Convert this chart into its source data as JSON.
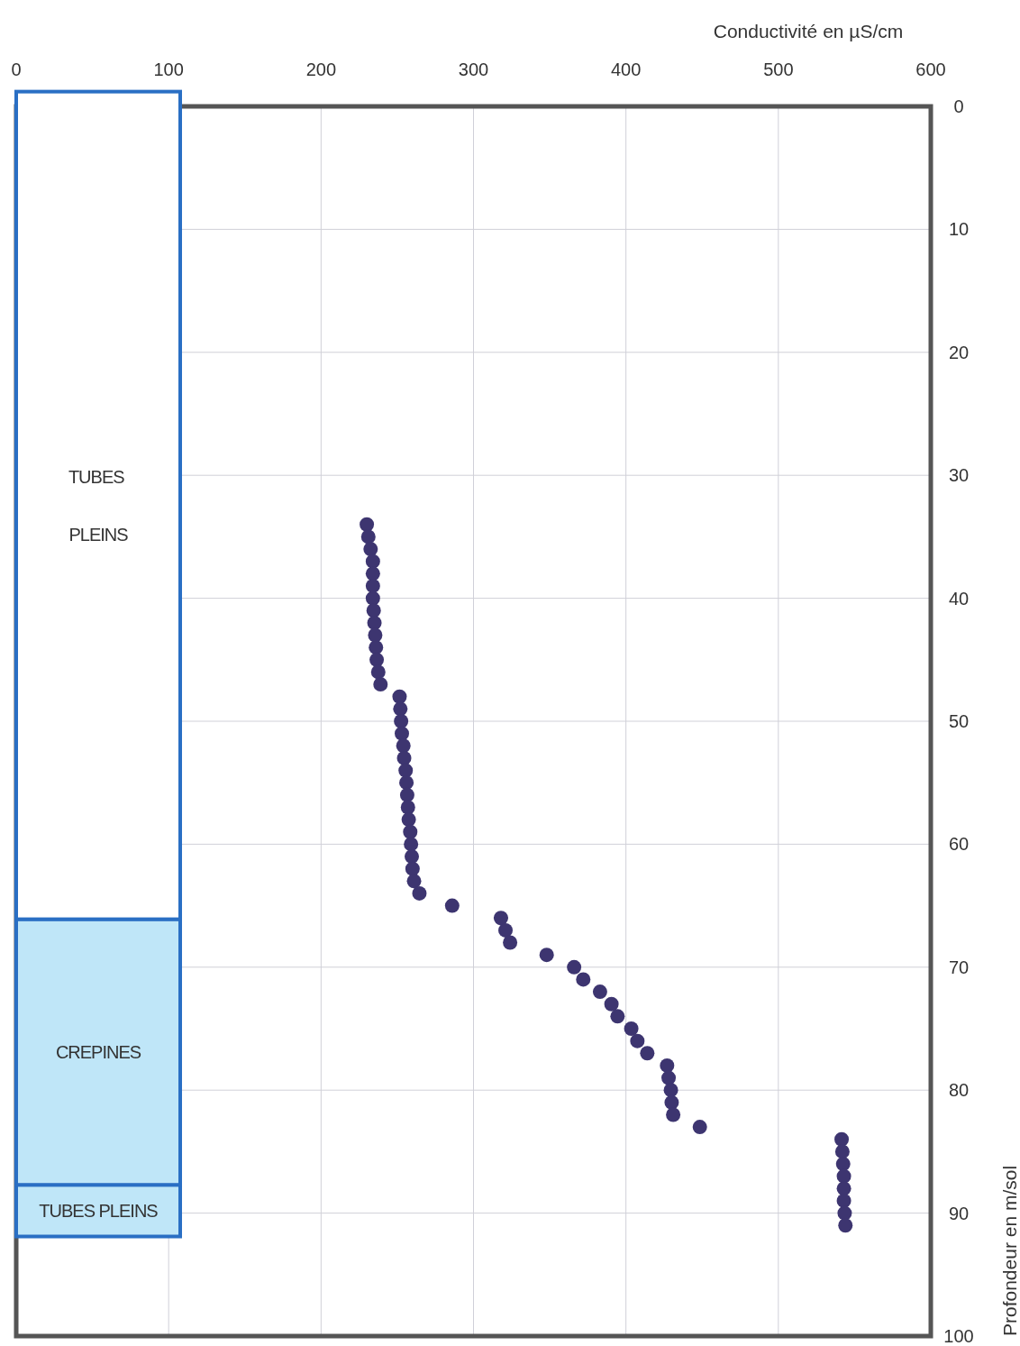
{
  "chart_data": {
    "type": "scatter",
    "xlabel": "Conductivité en µS/cm",
    "ylabel": "Profondeur en m/sol",
    "xlim": [
      0,
      600
    ],
    "xticks": [
      0,
      100,
      200,
      300,
      400,
      500,
      600
    ],
    "ylim": [
      100,
      0
    ],
    "yticks": [
      0,
      10,
      20,
      30,
      40,
      50,
      60,
      70,
      80,
      90,
      100
    ],
    "grid": true,
    "marker": "circle",
    "series": [
      {
        "color": "#3d3570",
        "x": [
          230,
          231,
          232.5,
          234,
          234,
          234,
          234,
          234.5,
          235,
          235.5,
          236,
          236.5,
          237.5,
          239,
          251.5,
          252,
          252.5,
          253,
          254,
          254.5,
          255.5,
          256,
          256.5,
          257,
          257.5,
          258.5,
          259,
          259.5,
          260,
          261,
          264.5,
          286,
          318,
          321,
          324,
          348,
          366,
          372,
          383,
          390.5,
          394.5,
          403.5,
          407.5,
          414,
          427,
          428,
          429.5,
          430,
          431,
          448.5,
          541.5,
          542,
          542.5,
          543,
          543,
          543,
          543.5,
          544
        ],
        "values": [
          34,
          35,
          36,
          37,
          38,
          39,
          40,
          41,
          42,
          43,
          44,
          45,
          46,
          47,
          48,
          49,
          50,
          51,
          52,
          53,
          54,
          55,
          56,
          57,
          58,
          59,
          60,
          61,
          62,
          63,
          64,
          65,
          66,
          67,
          68,
          69,
          70,
          71,
          72,
          73,
          74,
          75,
          76,
          77,
          78,
          79,
          80,
          81,
          82,
          83,
          84,
          85,
          86,
          87,
          88,
          89,
          90,
          91
        ]
      }
    ],
    "bands": [
      {
        "axis": "y",
        "from": 87.7,
        "to": 91.9,
        "label": "TUBES PLEINS",
        "color": "#bfe6f8"
      },
      {
        "axis": "y",
        "from": 66.1,
        "to": 87.7,
        "label": "CREPINES",
        "color": "#bfe6f8"
      },
      {
        "axis": "y",
        "from": -1.2,
        "to": 66.1,
        "label": "TUBES PLEINS",
        "color": "#ffffff"
      }
    ]
  }
}
